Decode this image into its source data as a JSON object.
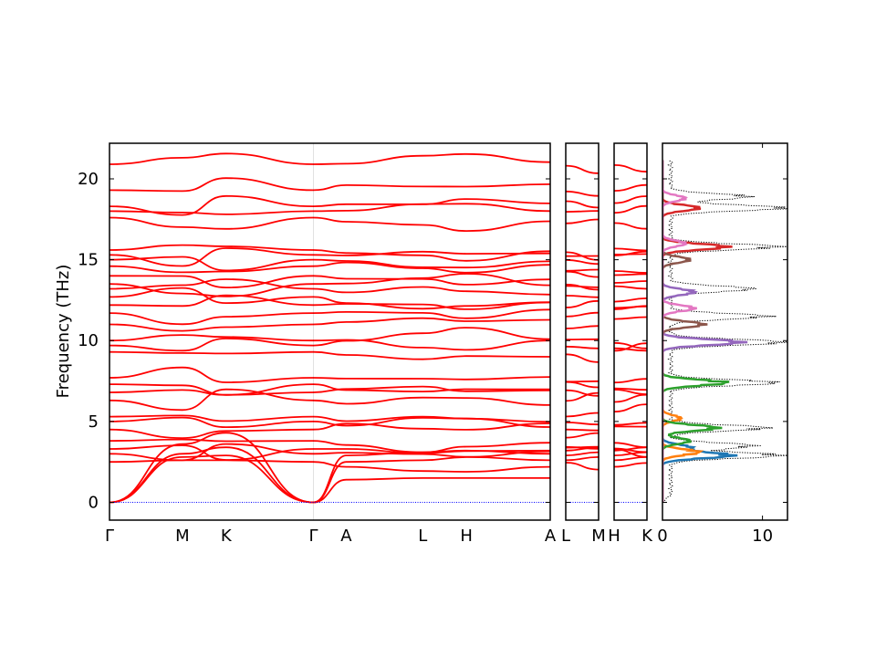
{
  "chart_data": {
    "type": "line",
    "ylabel": "Frequency (THz)",
    "ylim": [
      -1.1,
      22.2
    ],
    "yticks": [
      0,
      5,
      10,
      15,
      20
    ],
    "ytick_labels": [
      "0",
      "5",
      "10",
      "15",
      "20"
    ],
    "colors": {
      "band": "#ff0000",
      "zero": "#0000ff",
      "dos_total": "#000000"
    },
    "band_structure": {
      "segments": [
        {
          "name": "Γ-M-K-Γ",
          "x": [
            0,
            1.0,
            1.6,
            2.8
          ],
          "labels": [
            "Γ",
            "M",
            "K",
            "Γ"
          ]
        },
        {
          "name": "Γ-A-L-H-A",
          "x": [
            0,
            0.45,
            1.5,
            2.1,
            3.25
          ],
          "labels": [
            "",
            "A",
            "L",
            "H",
            "A"
          ]
        },
        {
          "name": "L-M",
          "x": [
            0,
            1
          ],
          "labels": [
            "L",
            "M"
          ]
        },
        {
          "name": "H-K",
          "x": [
            0,
            1
          ],
          "labels": [
            "H",
            "K"
          ]
        }
      ],
      "frequencies_at_gamma": [
        0,
        0,
        0,
        2.5,
        3.0,
        3.3,
        3.8,
        4.5,
        5.0,
        5.3,
        6.3,
        6.8,
        7.3,
        7.7,
        9.3,
        9.7,
        10.0,
        11.0,
        11.7,
        12.2,
        12.7,
        13.2,
        13.5,
        14.0,
        14.6,
        15.0,
        15.3,
        15.6,
        17.6,
        18.0,
        18.3,
        19.3,
        20.9
      ]
    },
    "dos": {
      "xlim": [
        0,
        12.5
      ],
      "xticks": [
        0,
        10
      ],
      "xtick_labels": [
        "0",
        "10"
      ],
      "series": [
        {
          "color": "#000000",
          "style": "dotted",
          "peaks": [
            [
              2.9,
              12.0
            ],
            [
              3.5,
              9.0
            ],
            [
              4.6,
              10.5
            ],
            [
              7.4,
              11.5
            ],
            [
              9.9,
              12.5
            ],
            [
              11.5,
              10.5
            ],
            [
              13.2,
              9.0
            ],
            [
              15.8,
              12.0
            ],
            [
              18.2,
              12.5
            ],
            [
              18.9,
              8.5
            ]
          ]
        },
        {
          "color": "#1f77b4",
          "peaks": [
            [
              2.9,
              7.5
            ],
            [
              3.4,
              3.0
            ]
          ]
        },
        {
          "color": "#ff7f0e",
          "peaks": [
            [
              3.1,
              4.0
            ],
            [
              5.2,
              2.0
            ]
          ]
        },
        {
          "color": "#2ca02c",
          "peaks": [
            [
              4.6,
              6.0
            ],
            [
              7.4,
              7.0
            ],
            [
              3.8,
              3.0
            ]
          ]
        },
        {
          "color": "#d62728",
          "peaks": [
            [
              15.8,
              7.0
            ],
            [
              18.2,
              4.0
            ]
          ]
        },
        {
          "color": "#9467bd",
          "peaks": [
            [
              9.9,
              8.5
            ],
            [
              13.0,
              3.5
            ]
          ]
        },
        {
          "color": "#8c564b",
          "peaks": [
            [
              11.0,
              4.5
            ],
            [
              15.0,
              3.0
            ]
          ]
        },
        {
          "color": "#e377c2",
          "peaks": [
            [
              12.0,
              3.5
            ],
            [
              16.0,
              2.5
            ],
            [
              18.8,
              2.5
            ]
          ]
        }
      ]
    }
  }
}
